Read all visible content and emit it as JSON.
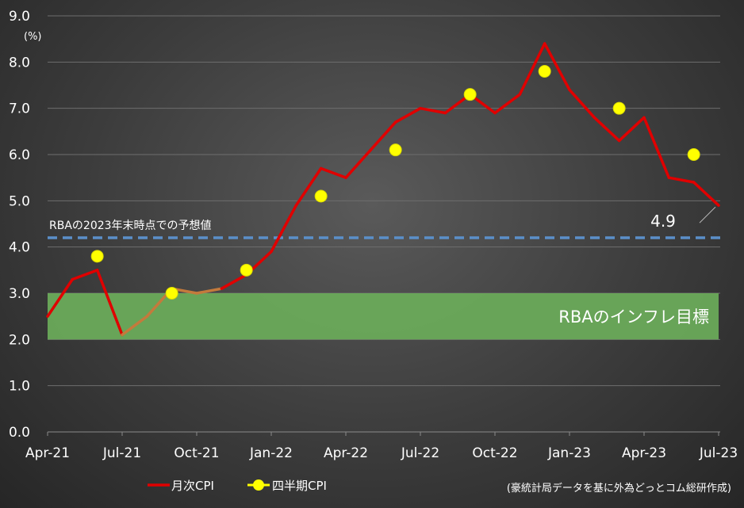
{
  "chart_data": {
    "type": "line",
    "ylabel": "(%)",
    "ylim": [
      0,
      9
    ],
    "yticks": [
      "0.0",
      "1.0",
      "2.0",
      "3.0",
      "4.0",
      "5.0",
      "6.0",
      "7.0",
      "8.0",
      "9.0"
    ],
    "xticks": [
      "Apr-21",
      "Jul-21",
      "Oct-21",
      "Jan-22",
      "Apr-22",
      "Jul-22",
      "Oct-22",
      "Jan-23",
      "Apr-23",
      "Jul-23"
    ],
    "grid": true,
    "legend_position": "bottom",
    "series": [
      {
        "name": "月次CPI",
        "color": "#e00000",
        "style": "line",
        "x": [
          "Apr-21",
          "May-21",
          "Jun-21",
          "Jul-21",
          "Aug-21",
          "Sep-21",
          "Oct-21",
          "Nov-21",
          "Dec-21",
          "Jan-22",
          "Feb-22",
          "Mar-22",
          "Apr-22",
          "May-22",
          "Jun-22",
          "Jul-22",
          "Aug-22",
          "Sep-22",
          "Oct-22",
          "Nov-22",
          "Dec-22",
          "Jan-23",
          "Feb-23",
          "Mar-23",
          "Apr-23",
          "May-23",
          "Jun-23",
          "Jul-23"
        ],
        "values": [
          2.5,
          3.3,
          3.5,
          2.1,
          2.5,
          3.1,
          3.0,
          3.1,
          3.4,
          3.9,
          4.9,
          5.7,
          5.5,
          6.1,
          6.7,
          7.0,
          6.9,
          7.3,
          6.9,
          7.3,
          8.4,
          7.4,
          6.8,
          6.3,
          6.8,
          5.5,
          5.4,
          4.9
        ]
      },
      {
        "name": "四半期CPI",
        "color": "#ffff00",
        "style": "markers",
        "x": [
          "Jun-21",
          "Sep-21",
          "Dec-21",
          "Mar-22",
          "Jun-22",
          "Sep-22",
          "Dec-22",
          "Mar-23",
          "Jun-23"
        ],
        "values": [
          3.8,
          3.0,
          3.5,
          5.1,
          6.1,
          7.3,
          7.8,
          7.0,
          6.0
        ]
      }
    ],
    "target_band": {
      "label": "RBAのインフレ目標",
      "low": 2.0,
      "high": 3.0,
      "color": "#6aaa5a"
    },
    "forecast_line": {
      "label": "RBAの2023年末時点での予想値",
      "value": 4.2,
      "color": "#5b8fc9"
    },
    "last_value_label": "4.9",
    "source": "(豪統計局データを基に外為どっとコム総研作成)"
  }
}
